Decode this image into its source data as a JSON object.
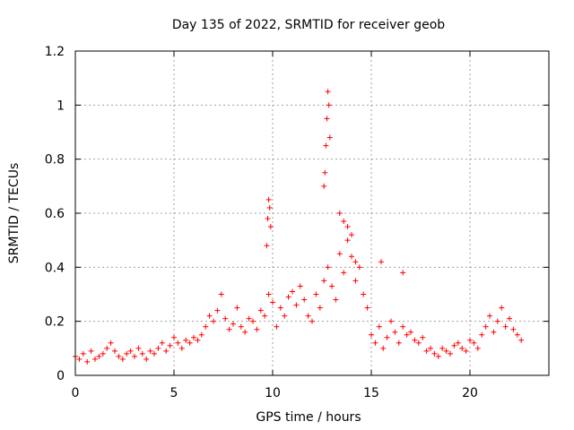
{
  "chart_data": {
    "type": "scatter",
    "title": "Day 135 of 2022, SRMTID for receiver geob",
    "xlabel": "GPS time / hours",
    "ylabel": "SRMTID / TECUs",
    "xlim": [
      0,
      24
    ],
    "ylim": [
      0,
      1.2
    ],
    "grid": true,
    "marker": "+",
    "color": "#ff0000",
    "xticks": [
      0,
      5,
      10,
      15,
      20
    ],
    "xtick_labels": [
      "0",
      "5",
      "10",
      "15",
      "20"
    ],
    "yticks": [
      0,
      0.2,
      0.4,
      0.6,
      0.8,
      1.0,
      1.2
    ],
    "ytick_labels": [
      "0",
      "0.2",
      "0.4",
      "0.6",
      "0.8",
      "1",
      "1.2"
    ],
    "series": [
      {
        "name": "SRMTID",
        "x": [
          0.0,
          0.2,
          0.4,
          0.6,
          0.8,
          1.0,
          1.2,
          1.4,
          1.6,
          1.8,
          2.0,
          2.2,
          2.4,
          2.6,
          2.8,
          3.0,
          3.2,
          3.4,
          3.6,
          3.8,
          4.0,
          4.2,
          4.4,
          4.6,
          4.8,
          5.0,
          5.2,
          5.4,
          5.6,
          5.8,
          6.0,
          6.2,
          6.4,
          6.6,
          6.8,
          7.0,
          7.2,
          7.4,
          7.6,
          7.8,
          8.0,
          8.2,
          8.4,
          8.6,
          8.8,
          9.0,
          9.2,
          9.4,
          9.6,
          9.8,
          10.0,
          10.2,
          10.4,
          10.6,
          10.8,
          11.0,
          11.2,
          11.4,
          11.6,
          11.8,
          12.0,
          12.2,
          12.4,
          12.6,
          12.8,
          13.0,
          13.2,
          13.4,
          13.6,
          13.8,
          14.0,
          14.2,
          14.4,
          14.6,
          14.8,
          15.0,
          15.2,
          15.4,
          15.6,
          15.8,
          16.0,
          16.2,
          16.4,
          16.6,
          16.8,
          17.0,
          17.2,
          17.4,
          17.6,
          17.8,
          18.0,
          18.2,
          18.4,
          18.6,
          18.8,
          19.0,
          19.2,
          19.4,
          19.6,
          19.8,
          20.0,
          20.2,
          20.4,
          20.6,
          20.8,
          21.0,
          21.2,
          21.4,
          21.6,
          21.8,
          22.0,
          22.2,
          22.4,
          22.6,
          9.7,
          9.75,
          9.8,
          9.85,
          9.9,
          12.6,
          12.65,
          12.7,
          12.75,
          12.8,
          12.85,
          12.9,
          13.4,
          13.6,
          13.8,
          14.0,
          14.2,
          15.5,
          16.6
        ],
        "y": [
          0.07,
          0.06,
          0.08,
          0.05,
          0.09,
          0.06,
          0.07,
          0.08,
          0.1,
          0.12,
          0.09,
          0.07,
          0.06,
          0.08,
          0.09,
          0.07,
          0.1,
          0.08,
          0.06,
          0.09,
          0.08,
          0.1,
          0.12,
          0.09,
          0.11,
          0.14,
          0.12,
          0.1,
          0.13,
          0.12,
          0.14,
          0.13,
          0.15,
          0.18,
          0.22,
          0.2,
          0.24,
          0.3,
          0.21,
          0.17,
          0.19,
          0.25,
          0.18,
          0.16,
          0.21,
          0.2,
          0.17,
          0.24,
          0.22,
          0.3,
          0.27,
          0.18,
          0.25,
          0.22,
          0.29,
          0.31,
          0.26,
          0.33,
          0.28,
          0.22,
          0.2,
          0.3,
          0.25,
          0.35,
          0.4,
          0.33,
          0.28,
          0.45,
          0.38,
          0.5,
          0.44,
          0.35,
          0.4,
          0.3,
          0.25,
          0.15,
          0.12,
          0.18,
          0.1,
          0.14,
          0.2,
          0.16,
          0.12,
          0.18,
          0.15,
          0.16,
          0.13,
          0.12,
          0.14,
          0.09,
          0.1,
          0.08,
          0.07,
          0.1,
          0.09,
          0.08,
          0.11,
          0.12,
          0.1,
          0.09,
          0.13,
          0.12,
          0.1,
          0.15,
          0.18,
          0.22,
          0.16,
          0.2,
          0.25,
          0.18,
          0.21,
          0.17,
          0.15,
          0.13,
          0.48,
          0.58,
          0.65,
          0.62,
          0.55,
          0.7,
          0.75,
          0.85,
          0.95,
          1.05,
          1.0,
          0.88,
          0.6,
          0.57,
          0.55,
          0.52,
          0.42,
          0.42,
          0.38
        ]
      }
    ]
  }
}
